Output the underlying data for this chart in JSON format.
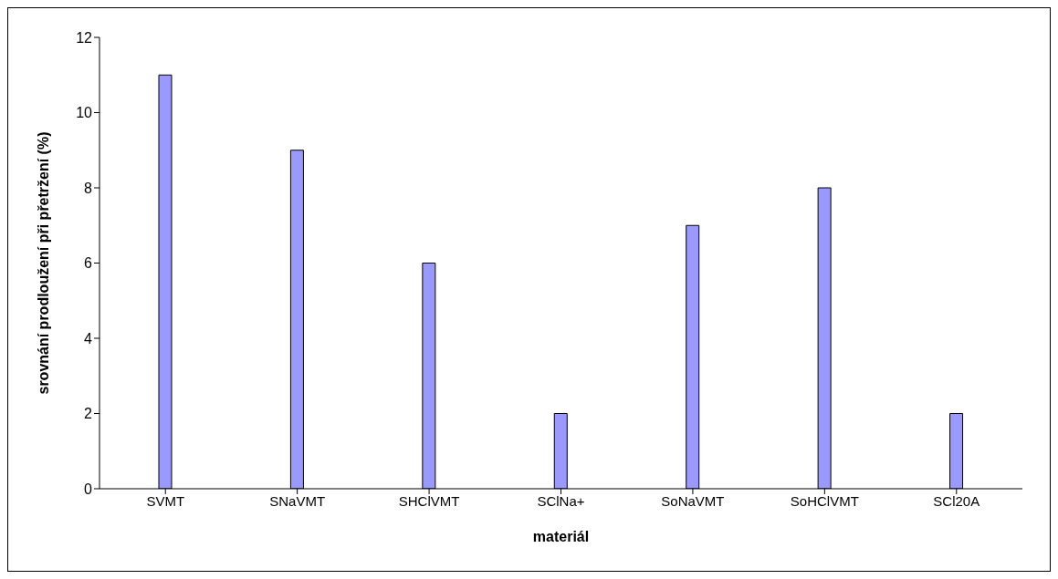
{
  "chart_data": {
    "type": "bar",
    "xlabel": "materiál",
    "ylabel": "srovnání prodloužení při přetržení (%)",
    "categories": [
      "SVMT",
      "SNaVMT",
      "SHClVMT",
      "SClNa+",
      "SoNaVMT",
      "SoHClVMT",
      "SCl20A"
    ],
    "values": [
      11,
      9,
      6,
      2,
      7,
      8,
      2
    ],
    "color": "#9999ff",
    "ylim": [
      0,
      12
    ],
    "yticks": [
      0,
      2,
      4,
      6,
      8,
      10,
      12
    ],
    "grid": false,
    "legend": false
  }
}
